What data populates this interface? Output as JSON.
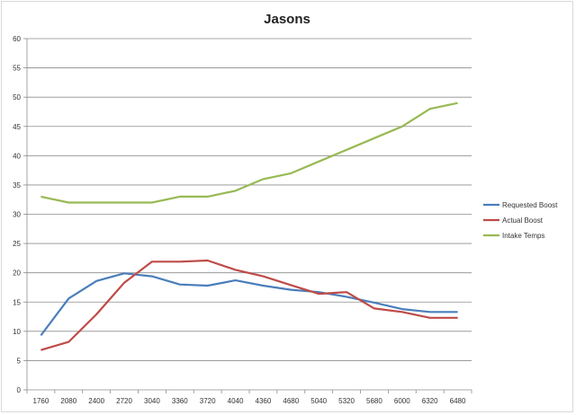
{
  "chart_data": {
    "type": "line",
    "title": "Jasons",
    "xlabel": "",
    "ylabel": "",
    "categories": [
      "1760",
      "2080",
      "2400",
      "2720",
      "3040",
      "3360",
      "3720",
      "4040",
      "4360",
      "4680",
      "5040",
      "5320",
      "5680",
      "6000",
      "6320",
      "6480"
    ],
    "ylim": [
      0,
      60
    ],
    "yticks": [
      0,
      5,
      10,
      15,
      20,
      25,
      30,
      35,
      40,
      45,
      50,
      55,
      60
    ],
    "grid": true,
    "legend": "right",
    "series": [
      {
        "name": "Requested Boost",
        "color": "#4a7ebb",
        "values": [
          9.3,
          15.6,
          18.6,
          19.9,
          19.4,
          18.0,
          17.8,
          18.7,
          17.8,
          17.1,
          16.7,
          15.9,
          14.9,
          13.8,
          13.3,
          13.3
        ]
      },
      {
        "name": "Actual Boost",
        "color": "#be4b48",
        "values": [
          6.8,
          8.2,
          12.9,
          18.3,
          21.9,
          21.9,
          22.1,
          20.5,
          19.4,
          17.9,
          16.4,
          16.7,
          13.9,
          13.3,
          12.3,
          12.3
        ]
      },
      {
        "name": "Intake Temps",
        "color": "#98b954",
        "values": [
          33,
          32,
          32,
          32,
          32,
          33,
          33,
          34,
          36,
          37,
          39,
          41,
          43,
          45,
          48,
          49
        ]
      }
    ]
  }
}
